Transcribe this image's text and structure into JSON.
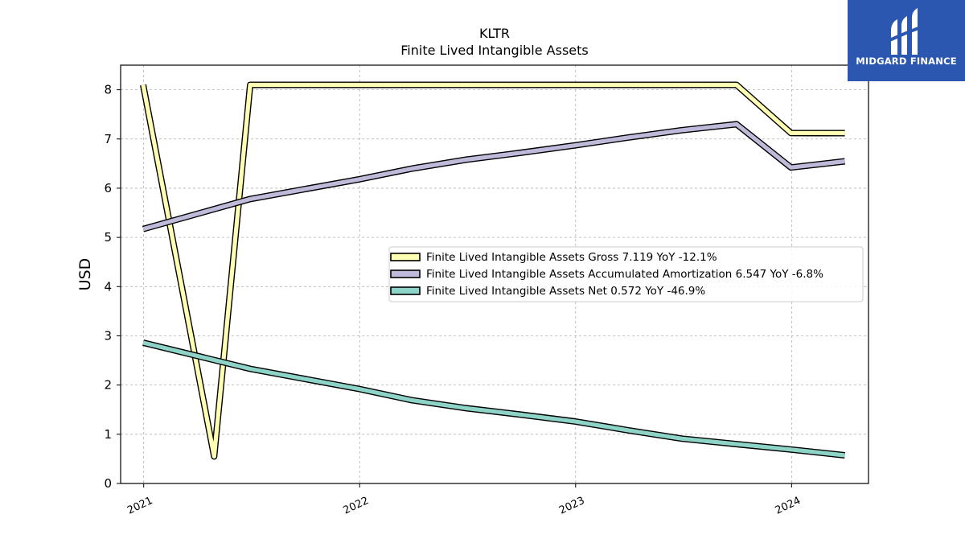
{
  "logo": {
    "text": "MIDGARD FINANCE",
    "background": "#2b57b0"
  },
  "chart_data": {
    "type": "line",
    "title": "KLTR",
    "subtitle": "Finite Lived Intangible Assets",
    "xlabel": "",
    "ylabel": "USD",
    "xlim": [
      "2020-11-23",
      "2024-05-10"
    ],
    "ylim": [
      0,
      8.5
    ],
    "x_ticks": [
      "2021",
      "2022",
      "2023",
      "2024"
    ],
    "x_tick_dates": [
      "2021-01-01",
      "2022-01-01",
      "2023-01-01",
      "2024-01-01"
    ],
    "y_ticks": [
      0,
      1,
      2,
      3,
      4,
      5,
      6,
      7,
      8
    ],
    "grid": true,
    "legend_position": "center-right",
    "series": [
      {
        "name": "Finite Lived Intangible Assets Gross  7.119 YoY -12.1%",
        "color": "#ffffb3",
        "points": [
          [
            "2020-12-31",
            8.1
          ],
          [
            "2021-04-30",
            0.55
          ],
          [
            "2021-06-30",
            8.1
          ],
          [
            "2021-09-30",
            8.1
          ],
          [
            "2021-12-31",
            8.1
          ],
          [
            "2022-03-31",
            8.1
          ],
          [
            "2022-06-30",
            8.1
          ],
          [
            "2022-09-30",
            8.1
          ],
          [
            "2022-12-31",
            8.1
          ],
          [
            "2023-03-31",
            8.1
          ],
          [
            "2023-06-30",
            8.1
          ],
          [
            "2023-09-30",
            8.1
          ],
          [
            "2023-12-31",
            7.12
          ],
          [
            "2024-03-31",
            7.119
          ]
        ]
      },
      {
        "name": "Finite Lived Intangible Assets Accumulated Amortization  6.547 YoY -6.8%",
        "color": "#bebada",
        "points": [
          [
            "2020-12-31",
            5.17
          ],
          [
            "2021-06-30",
            5.78
          ],
          [
            "2021-12-31",
            6.18
          ],
          [
            "2022-03-31",
            6.4
          ],
          [
            "2022-06-30",
            6.58
          ],
          [
            "2022-09-30",
            6.72
          ],
          [
            "2022-12-31",
            6.87
          ],
          [
            "2023-03-31",
            7.03
          ],
          [
            "2023-06-30",
            7.18
          ],
          [
            "2023-09-30",
            7.3
          ],
          [
            "2023-12-31",
            6.42
          ],
          [
            "2024-03-31",
            6.547
          ]
        ]
      },
      {
        "name": "Finite Lived Intangible Assets Net  0.572 YoY -46.9%",
        "color": "#8dd3c7",
        "points": [
          [
            "2020-12-31",
            2.86
          ],
          [
            "2021-06-30",
            2.33
          ],
          [
            "2021-12-31",
            1.92
          ],
          [
            "2022-03-31",
            1.69
          ],
          [
            "2022-06-30",
            1.53
          ],
          [
            "2022-09-30",
            1.4
          ],
          [
            "2022-12-31",
            1.26
          ],
          [
            "2023-03-31",
            1.08
          ],
          [
            "2023-06-30",
            0.91
          ],
          [
            "2023-09-30",
            0.8
          ],
          [
            "2023-12-31",
            0.69
          ],
          [
            "2024-03-31",
            0.572
          ]
        ]
      }
    ]
  }
}
